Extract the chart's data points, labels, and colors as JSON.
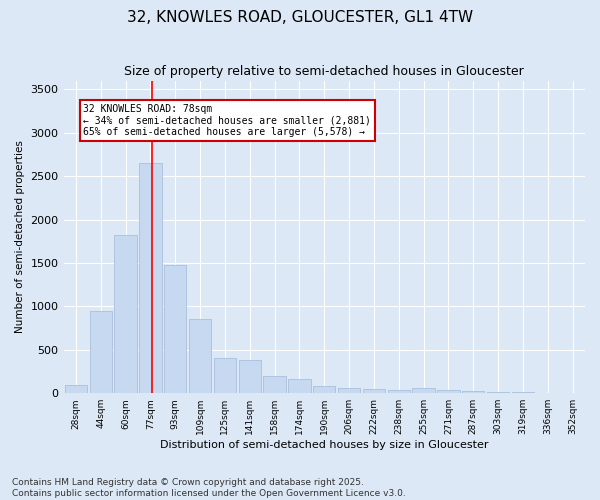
{
  "title": "32, KNOWLES ROAD, GLOUCESTER, GL1 4TW",
  "subtitle": "Size of property relative to semi-detached houses in Gloucester",
  "xlabel": "Distribution of semi-detached houses by size in Gloucester",
  "ylabel": "Number of semi-detached properties",
  "categories": [
    "28sqm",
    "44sqm",
    "60sqm",
    "77sqm",
    "93sqm",
    "109sqm",
    "125sqm",
    "141sqm",
    "158sqm",
    "174sqm",
    "190sqm",
    "206sqm",
    "222sqm",
    "238sqm",
    "255sqm",
    "271sqm",
    "287sqm",
    "303sqm",
    "319sqm",
    "336sqm",
    "352sqm"
  ],
  "values": [
    100,
    950,
    1820,
    2650,
    1480,
    850,
    400,
    380,
    195,
    165,
    80,
    62,
    48,
    38,
    60,
    38,
    30,
    18,
    10,
    5,
    2
  ],
  "bar_color": "#c6d9f1",
  "bar_edge_color": "#a0b8d8",
  "red_line_index": 3,
  "annotation_line1": "32 KNOWLES ROAD: 78sqm",
  "annotation_line2": "← 34% of semi-detached houses are smaller (2,881)",
  "annotation_line3": "65% of semi-detached houses are larger (5,578) →",
  "annotation_box_color": "#ffffff",
  "annotation_box_edge": "#cc0000",
  "footer_line1": "Contains HM Land Registry data © Crown copyright and database right 2025.",
  "footer_line2": "Contains public sector information licensed under the Open Government Licence v3.0.",
  "ylim": [
    0,
    3600
  ],
  "yticks": [
    0,
    500,
    1000,
    1500,
    2000,
    2500,
    3000,
    3500
  ],
  "background_color": "#dce8f5",
  "grid_color": "#ffffff",
  "title_fontsize": 11,
  "footer_fontsize": 6.5
}
